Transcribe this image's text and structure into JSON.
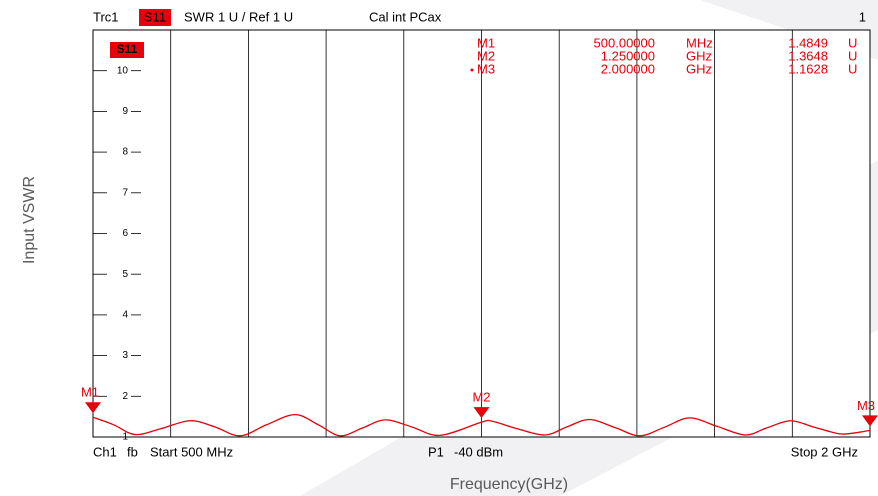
{
  "chart_data": {
    "type": "line",
    "header": {
      "trace": "Trc1",
      "param": "S11",
      "format": "SWR 1 U / Ref 1 U",
      "cal": "Cal int PCax",
      "channel": "1"
    },
    "ylabel": "Input VSWR",
    "xlabel": "Frequency(GHz)",
    "footer": {
      "channel": "Ch1",
      "mode": "fb",
      "start": "Start 500 MHz",
      "port": "P1",
      "power": "-40 dBm",
      "stop": "Stop 2 GHz"
    },
    "xlim": [
      0.5,
      2.0
    ],
    "xticks": [
      0.5,
      0.65,
      0.8,
      0.95,
      1.1,
      1.25,
      1.4,
      1.55,
      1.7,
      1.85,
      2.0
    ],
    "ylim": [
      1,
      11
    ],
    "yticks": [
      1,
      2,
      3,
      4,
      5,
      6,
      7,
      8,
      9,
      10
    ],
    "x": [
      0.5,
      0.54,
      0.581,
      0.63,
      0.687,
      0.735,
      0.784,
      0.835,
      0.89,
      0.935,
      0.977,
      1.02,
      1.064,
      1.115,
      1.17,
      1.25,
      1.27,
      1.32,
      1.373,
      1.415,
      1.459,
      1.51,
      1.556,
      1.605,
      1.652,
      1.705,
      1.759,
      1.8,
      1.846,
      1.89,
      1.94,
      1.97,
      2.0
    ],
    "series": [
      {
        "name": "S11",
        "color": "#e8000b",
        "values": [
          1.4849,
          1.3,
          1.06,
          1.2,
          1.4,
          1.25,
          1.03,
          1.3,
          1.55,
          1.3,
          1.03,
          1.22,
          1.42,
          1.25,
          1.04,
          1.3648,
          1.39,
          1.2,
          1.05,
          1.25,
          1.43,
          1.22,
          1.03,
          1.25,
          1.47,
          1.26,
          1.05,
          1.22,
          1.4,
          1.25,
          1.08,
          1.1,
          1.1628
        ]
      }
    ],
    "markers": [
      {
        "name": "M1",
        "x": 0.5,
        "x_label": "500.00000",
        "x_unit": "MHz",
        "value": 1.4849,
        "unit": "U"
      },
      {
        "name": "M2",
        "x": 1.25,
        "x_label": "1.250000",
        "x_unit": "GHz",
        "value": 1.3648,
        "unit": "U"
      },
      {
        "name": "M3",
        "x": 2.0,
        "x_label": "2.000000",
        "x_unit": "GHz",
        "value": 1.1628,
        "unit": "U",
        "active": true
      }
    ]
  }
}
